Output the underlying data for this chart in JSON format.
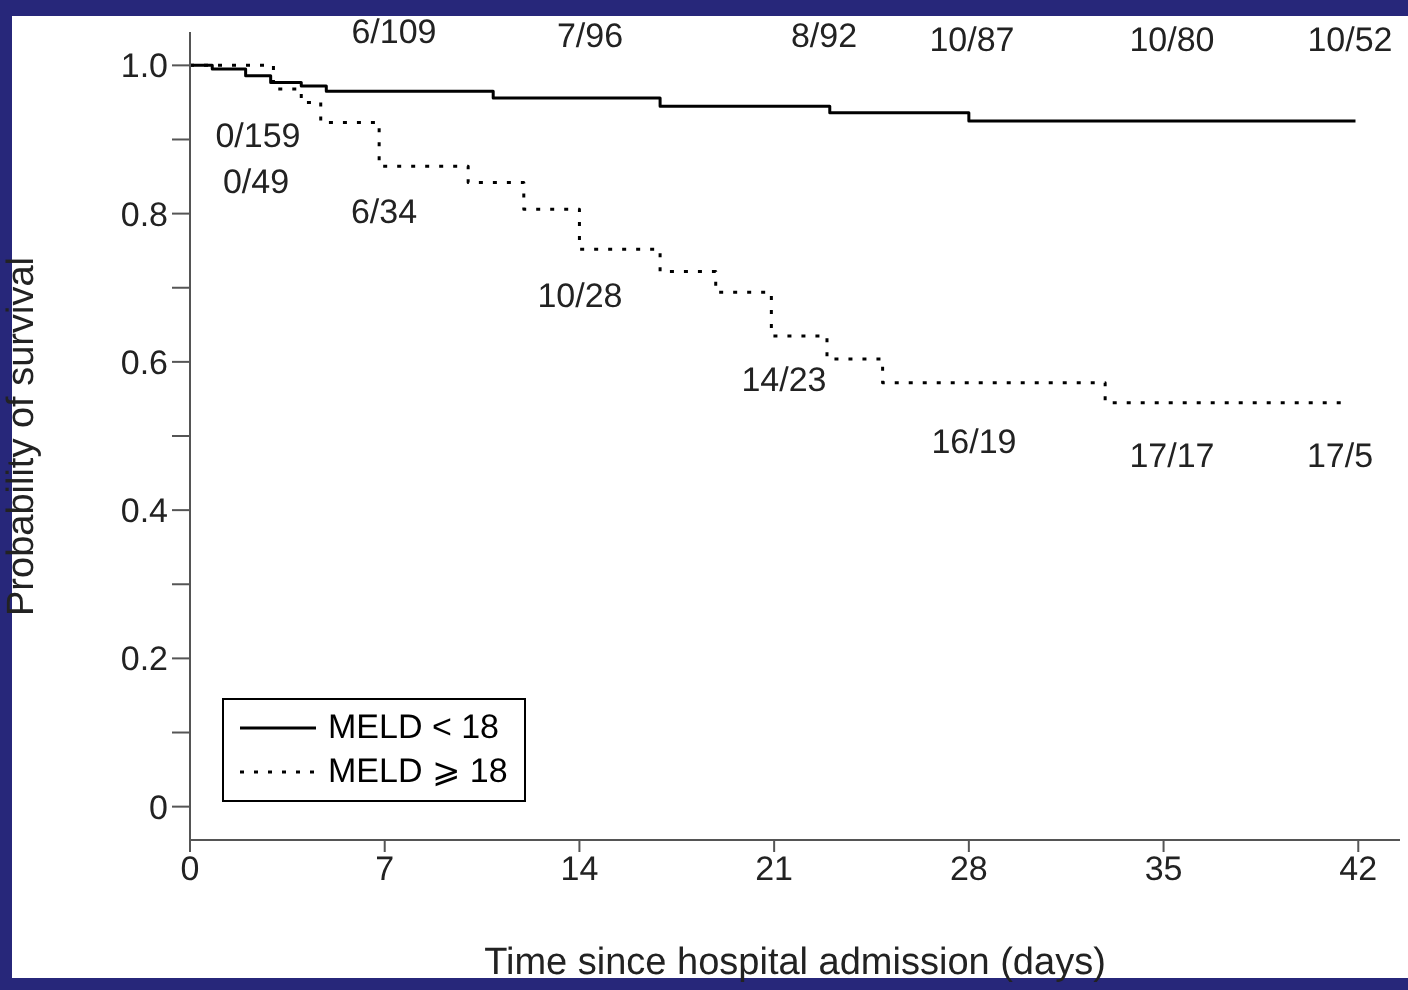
{
  "chart_data": {
    "type": "step",
    "xlabel": "Time since hospital admission (days)",
    "ylabel": "Probability of survival",
    "xlim": [
      0,
      43.5
    ],
    "xticks": [
      0,
      7,
      14,
      21,
      28,
      35,
      42
    ],
    "ylim": [
      -0.045,
      1.045
    ],
    "yticks": [
      {
        "value": 0,
        "label": "0"
      },
      {
        "value": 0.1,
        "label": null
      },
      0.2,
      {
        "value": 0.3,
        "label": null
      },
      0.4,
      {
        "value": 0.5,
        "label": null
      },
      0.6,
      {
        "value": 0.7,
        "label": null
      },
      0.8,
      {
        "value": 0.9,
        "label": null
      },
      {
        "value": 1,
        "label": "1.0"
      }
    ],
    "grid": false,
    "legend": "bottom left",
    "marker": "none",
    "series": [
      {
        "name": "MELD < 18",
        "color": "#000000",
        "line_style": "solid",
        "x": [
          0,
          0.8,
          2.0,
          2.9,
          4.0,
          4.9,
          10.9,
          16.9,
          23.0,
          28.0,
          41.9
        ],
        "values": [
          1.0,
          0.995,
          0.986,
          0.977,
          0.972,
          0.965,
          0.956,
          0.945,
          0.936,
          0.925,
          0.925
        ]
      },
      {
        "name": "MELD ⩾ 18",
        "color": "#000000",
        "line_style": "dotted",
        "x": [
          0,
          3.0,
          4.0,
          4.7,
          6.8,
          10.0,
          12.0,
          14.0,
          16.9,
          18.9,
          20.9,
          22.9,
          24.9,
          32.9,
          41.4
        ],
        "values": [
          1.0,
          0.968,
          0.95,
          0.923,
          0.864,
          0.842,
          0.806,
          0.752,
          0.722,
          0.694,
          0.635,
          0.604,
          0.572,
          0.545,
          0.545
        ]
      }
    ],
    "annotations": [
      "0/159",
      "0/49",
      "6/109",
      "6/34",
      "7/96",
      "10/28",
      "8/92",
      "14/23",
      "10/87",
      "16/19",
      "10/80",
      "17/17",
      "10/52",
      "17/5"
    ]
  }
}
